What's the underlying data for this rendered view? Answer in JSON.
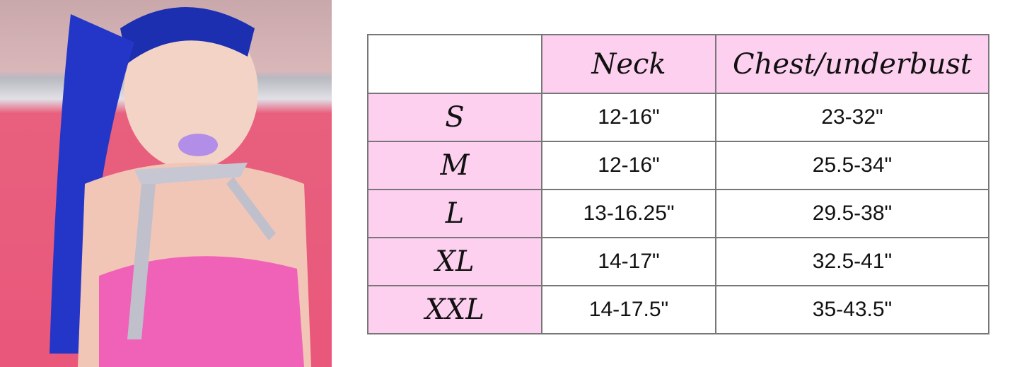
{
  "header": {
    "corner": "",
    "neck": "Neck",
    "chest": "Chest/underbust"
  },
  "rows": [
    {
      "size": "S",
      "neck": "12-16\"",
      "chest": "23-32\""
    },
    {
      "size": "M",
      "neck": "12-16\"",
      "chest": "25.5-34\""
    },
    {
      "size": "L",
      "neck": "13-16.25\"",
      "chest": "29.5-38\""
    },
    {
      "size": "XL",
      "neck": "14-17\"",
      "chest": "32.5-41\""
    },
    {
      "size": "XXL",
      "neck": "14-17.5\"",
      "chest": "35-43.5\""
    }
  ],
  "colors": {
    "header_fill": "#fdd0f0",
    "border": "#777777"
  }
}
